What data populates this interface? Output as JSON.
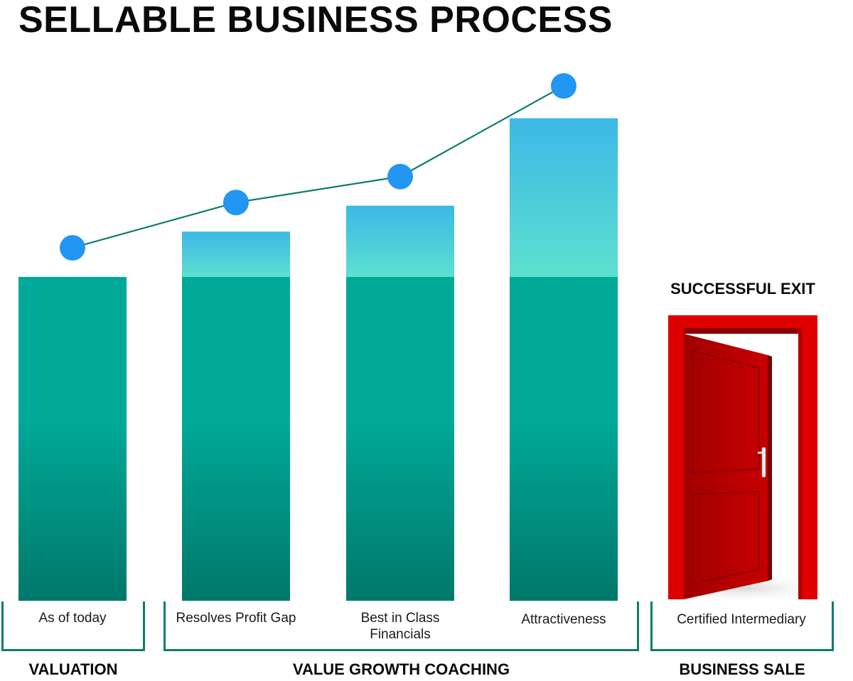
{
  "title": "SELLABLE BUSINESS PROCESS",
  "exit_label": "SUCCESSFUL EXIT",
  "colors": {
    "bar_base_top": "#00a898",
    "bar_base_bottom": "#00786a",
    "bar_growth_top": "#3cb8e6",
    "bar_growth_bottom": "#5ee0d0",
    "line": "#0e7d6b",
    "marker": "#2196f3",
    "bracket": "#0e7d6b",
    "door": "#cc0000"
  },
  "icons": [
    "door-icon"
  ],
  "chart_data": {
    "type": "bar",
    "title": "SELLABLE BUSINESS PROCESS",
    "xlabel": "",
    "ylabel": "",
    "ylim": [
      0,
      100
    ],
    "grid": false,
    "legend": "none",
    "categories": [
      "As of today",
      "Resolves Profit Gap",
      "Best in Class Financials",
      "Attractiveness",
      "Certified Intermediary"
    ],
    "series": [
      {
        "values": [
          100,
          100,
          100,
          100,
          null
        ]
      },
      {
        "values": [
          0,
          14,
          22,
          49,
          null
        ]
      }
    ],
    "line_values": [
      109,
      123,
      131,
      159,
      null
    ]
  },
  "groups": [
    {
      "label": "VALUATION",
      "categories": [
        "As of today"
      ]
    },
    {
      "label": "VALUE GROWTH COACHING",
      "categories": [
        "Resolves Profit Gap",
        "Best in Class Financials",
        "Attractiveness"
      ]
    },
    {
      "label": "BUSINESS SALE",
      "categories": [
        "Certified Intermediary"
      ]
    }
  ]
}
